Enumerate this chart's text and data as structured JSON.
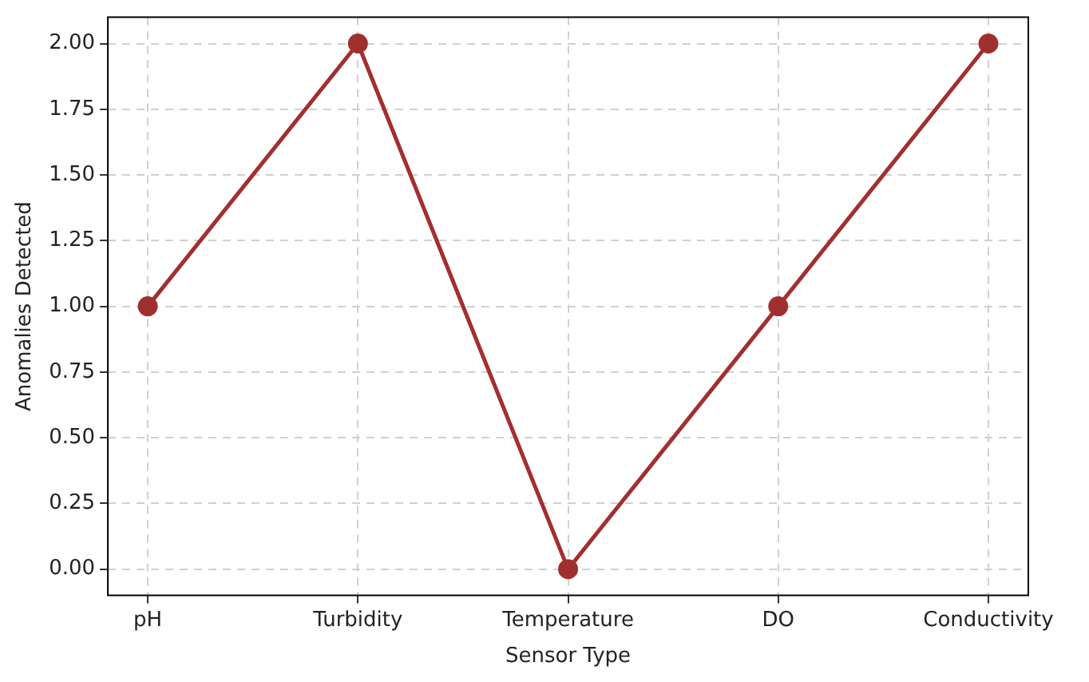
{
  "chart_data": {
    "type": "line",
    "xlabel": "Sensor Type",
    "ylabel": "Anomalies Detected",
    "categories": [
      "pH",
      "Turbidity",
      "Temperature",
      "DO",
      "Conductivity"
    ],
    "series": [
      {
        "color": "#a0302f",
        "values": [
          1,
          2,
          0,
          1,
          2
        ]
      }
    ],
    "ylim": [
      -0.1,
      2.1
    ],
    "yticks": [
      {
        "value": 0,
        "label": "0.00"
      },
      {
        "value": 0.25,
        "label": "0.25"
      },
      {
        "value": 0.5,
        "label": "0.50"
      },
      {
        "value": 0.75,
        "label": "0.75"
      },
      {
        "value": 1,
        "label": "1.00"
      },
      {
        "value": 1.25,
        "label": "1.25"
      },
      {
        "value": 1.5,
        "label": "1.50"
      },
      {
        "value": 1.75,
        "label": "1.75"
      },
      {
        "value": 2,
        "label": "2.00"
      }
    ],
    "grid": true,
    "legend": false,
    "marker": "circle",
    "line_style": "solid"
  }
}
